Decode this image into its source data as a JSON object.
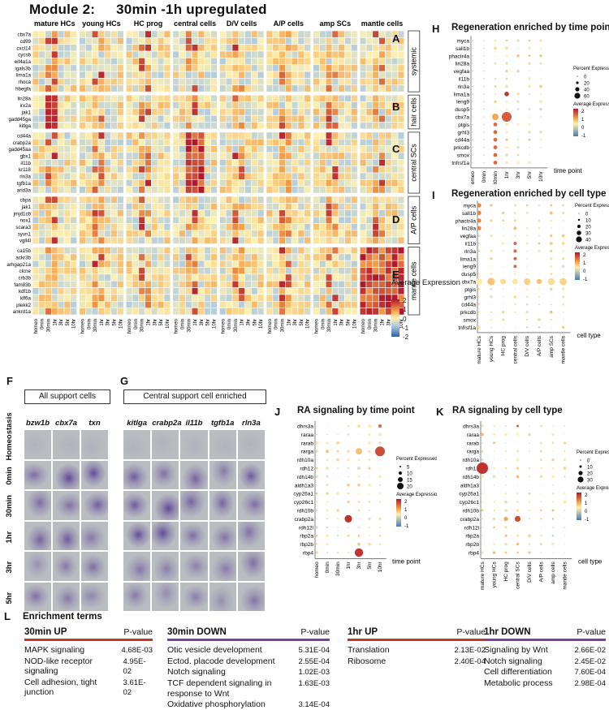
{
  "figure": {
    "title": "Module 2:",
    "title_tail": "30min -1h upregulated",
    "panel_letters": [
      "A",
      "B",
      "C",
      "D",
      "E",
      "F",
      "G",
      "H",
      "I",
      "J",
      "K",
      "L"
    ]
  },
  "heatmap": {
    "cell_types": [
      "mature HCs",
      "young HCs",
      "HC prog",
      "central cells",
      "D/V cells",
      "A/P cells",
      "amp SCs",
      "mantle cells"
    ],
    "time_points": [
      "homeo",
      "0min",
      "30min",
      "1hr",
      "3hr",
      "5hr",
      "10hr"
    ],
    "groups": [
      {
        "label": "systemic",
        "genes": [
          "cbx7a",
          "cd99",
          "cxcl14",
          "cycsb",
          "eif4a1a",
          "igals3b",
          "lima1a",
          "rhoca",
          "hbegfa"
        ]
      },
      {
        "label": "hair cells",
        "genes": [
          "lin28a",
          "irx2a",
          "jak1",
          "gadd45ga",
          "kitlga"
        ]
      },
      {
        "label": "central SCs",
        "genes": [
          "cd44a",
          "crabp2a",
          "gadd45aa",
          "gbx1",
          "il11b",
          "kr118",
          "rln3a",
          "tgfb1a",
          "arid3a"
        ]
      },
      {
        "label": "A/P cells",
        "genes": [
          "cbpa",
          "jak1",
          "jmjd1cb",
          "nox1",
          "scara3",
          "syvn1",
          "vgll4l"
        ]
      },
      {
        "label": "mantle cells",
        "genes": [
          "ca15b",
          "ackr3b",
          "arhgap21a",
          "clcne",
          "crb3b",
          "fam83b",
          "kdf1b",
          "klf6a",
          "plekk2",
          "ankrd1a"
        ]
      }
    ],
    "legend_title": "Average Expression",
    "legend_ticks": [
      "2",
      "1",
      "0",
      "-1",
      "-2"
    ],
    "legend_colors": [
      "#b2182b",
      "#f4a04a",
      "#fdf0b0",
      "#a9c8e2",
      "#2f5f9f"
    ]
  },
  "ish": {
    "group_left": "All support cells",
    "group_right": "Central support cell enriched",
    "genes_left": [
      "bzw1b",
      "cbx7a",
      "txn"
    ],
    "genes_right": [
      "kitlga",
      "crabp2a",
      "il11b",
      "tgfb1a",
      "rln3a"
    ],
    "rows": [
      "Homeostasis",
      "0min",
      "30min",
      "1hr",
      "3hr",
      "5hr"
    ]
  },
  "dotH": {
    "title": "Regeneration enriched by time point",
    "genes": [
      "myca",
      "sall1b",
      "phactr4a",
      "lin28a",
      "vegfaa",
      "il11b",
      "rln3a",
      "lima1a",
      "leng9",
      "dusp5",
      "cbx7a",
      "ptgis",
      "grhl3",
      "cd44a",
      "prkcdb",
      "smox",
      "tnfrsf1a"
    ],
    "x": [
      "homeo",
      "0min",
      "30min",
      "1hr",
      "3hr",
      "5hr",
      "10hr"
    ],
    "xlabel": "time point",
    "size_title": "Percent Expressed",
    "size_ticks": [
      "0",
      "20",
      "40",
      "60"
    ],
    "color_title": "Average Expression",
    "color_ticks": [
      "2",
      "1",
      "0",
      "-1"
    ]
  },
  "dotI": {
    "title": "Regeneration enriched by cell type",
    "genes": [
      "myca",
      "sall1b",
      "phactr4a",
      "lin28a",
      "vegfaa",
      "il11b",
      "rln3a",
      "lima1a",
      "leng9",
      "dusp5",
      "cbx7a",
      "ptgis",
      "grhl3",
      "cd44a",
      "prkcdb",
      "smox",
      "tnfrsf1a"
    ],
    "x": [
      "mature HCs",
      "young HCs",
      "HC prog",
      "central cells",
      "D/V cells",
      "A/P cells",
      "amp SCs",
      "mantle cells"
    ],
    "xlabel": "cell type",
    "size_title": "Percent Expressed",
    "size_ticks": [
      "0",
      "10",
      "20",
      "30",
      "40"
    ],
    "color_title": "Average Expression",
    "color_ticks": [
      "2",
      "1",
      "0",
      "-1"
    ]
  },
  "dotJ": {
    "title": "RA signaling by time point",
    "genes": [
      "dhrs3a",
      "raraa",
      "rarab",
      "rarga",
      "rdh10a",
      "rdh12",
      "rdh14b",
      "aldh1a3",
      "cyp26a1",
      "cyp26c1",
      "rdh10b",
      "crabp2a",
      "rdh12l",
      "rbp2a",
      "rbp2b",
      "rbp4"
    ],
    "x": [
      "homeo",
      "0min",
      "30min",
      "1hr",
      "3hr",
      "5hr",
      "10hr"
    ],
    "xlabel": "time point",
    "size_title": "Percent Expressed",
    "size_ticks": [
      "5",
      "10",
      "15",
      "20"
    ],
    "color_title": "Average Expression",
    "color_ticks": [
      "2",
      "1",
      "0",
      "-1"
    ]
  },
  "dotK": {
    "title": "RA signaling by cell type",
    "genes": [
      "dhrs3a",
      "raraa",
      "rarab",
      "rarga",
      "rdh10a",
      "rdh12",
      "rdh14b",
      "aldh1a3",
      "cyp26a1",
      "cyp26c1",
      "rdh10b",
      "crabp2a",
      "rdh12l",
      "rbp2a",
      "rbp2b",
      "rbp4"
    ],
    "x": [
      "mature HCs",
      "young HCs",
      "HC prog",
      "central SCs",
      "D/V cells",
      "A/P cells",
      "amp cells",
      "mantle cells"
    ],
    "xlabel": "cell type",
    "size_title": "Percent Expressed",
    "size_ticks": [
      "0",
      "10",
      "20",
      "30"
    ],
    "color_title": "Average Expression",
    "color_ticks": [
      "2",
      "1",
      "0",
      "-1"
    ]
  },
  "enrichment": {
    "title": "Enrichment terms",
    "pvalue_label": "P-value",
    "columns": [
      {
        "head": "30min UP",
        "color": "#c0392b",
        "terms": [
          [
            "MAPK signaling",
            "4.68E-03"
          ],
          [
            "NOD-like receptor signaling",
            "4.95E-02"
          ],
          [
            "Cell adhesion, tight junction",
            "3.61E-02"
          ]
        ]
      },
      {
        "head": "30min DOWN",
        "color": "#7b3fa0",
        "terms": [
          [
            "Otic vesicle development",
            "5.31E-04"
          ],
          [
            "Ectod. placode development",
            "2.55E-04"
          ],
          [
            "Notch signaling",
            "1.02E-03"
          ],
          [
            "TCF dependent signaling in",
            "1.63E-03"
          ],
          [
            "response to Wnt",
            ""
          ],
          [
            "Oxidative phosphorylation",
            "3.14E-04"
          ]
        ]
      },
      {
        "head": "1hr UP",
        "color": "#c0392b",
        "terms": [
          [
            "Translation",
            "2.13E-02"
          ],
          [
            "Ribosome",
            "2.40E-04"
          ]
        ]
      },
      {
        "head": "1hr DOWN",
        "color": "#7b3fa0",
        "terms": [
          [
            "Signaling by Wnt",
            "2.66E-02"
          ],
          [
            "Notch signaling",
            "2.45E-02"
          ],
          [
            "Cell differentiation",
            "7.60E-04"
          ],
          [
            "Metabolic process",
            "2.98E-04"
          ]
        ]
      }
    ]
  }
}
